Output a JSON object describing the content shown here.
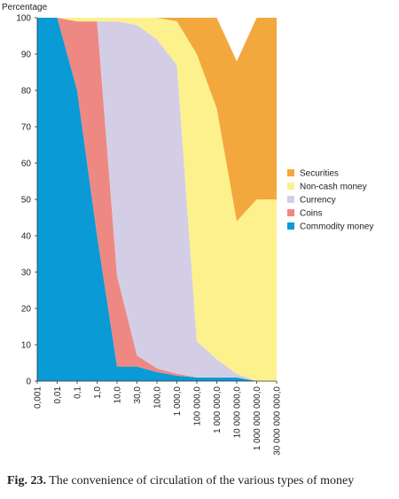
{
  "chart_data": {
    "type": "area",
    "stacked": true,
    "ylabel": "Percentage",
    "ylim": [
      0,
      100
    ],
    "yticks": [
      0,
      10,
      20,
      30,
      40,
      50,
      60,
      70,
      80,
      90,
      100
    ],
    "categories": [
      "0,001",
      "0,01",
      "0,1",
      "1,0",
      "10,0",
      "30,0",
      "100,0",
      "1 000,0",
      "100 000,0",
      "1 000 000,0",
      "10 000 000,0",
      "1 000 000 000,0",
      "30 000 000 000,0"
    ],
    "legend_position": "right",
    "grid": false,
    "series": [
      {
        "name": "Commodity money",
        "color": "#0a9ad6",
        "values": [
          100,
          100,
          80,
          40,
          4,
          4,
          2.5,
          1.5,
          1,
          1,
          1,
          0,
          0
        ]
      },
      {
        "name": "Coins",
        "color": "#ee8883",
        "values": [
          0,
          0,
          19,
          59,
          25,
          3,
          1,
          0.5,
          0,
          0,
          0,
          0,
          0
        ]
      },
      {
        "name": "Currency",
        "color": "#d3cee6",
        "values": [
          0,
          0,
          0,
          0,
          70,
          91,
          90.5,
          85,
          10,
          5,
          1,
          0,
          0
        ]
      },
      {
        "name": "Non-cash money",
        "color": "#fdf18e",
        "values": [
          0,
          0,
          1,
          1,
          1,
          2,
          6,
          12,
          79,
          69,
          42,
          50,
          50
        ]
      },
      {
        "name": "Securities",
        "color": "#f3a83e",
        "values": [
          0,
          0,
          0,
          0,
          0,
          0,
          0,
          1,
          10,
          25,
          44,
          50,
          50
        ]
      }
    ]
  },
  "legend_order": [
    "Securities",
    "Non-cash money",
    "Currency",
    "Coins",
    "Commodity money"
  ],
  "caption": {
    "label": "Fig. 23.",
    "text": " The convenience of circulation of the various types of money"
  }
}
